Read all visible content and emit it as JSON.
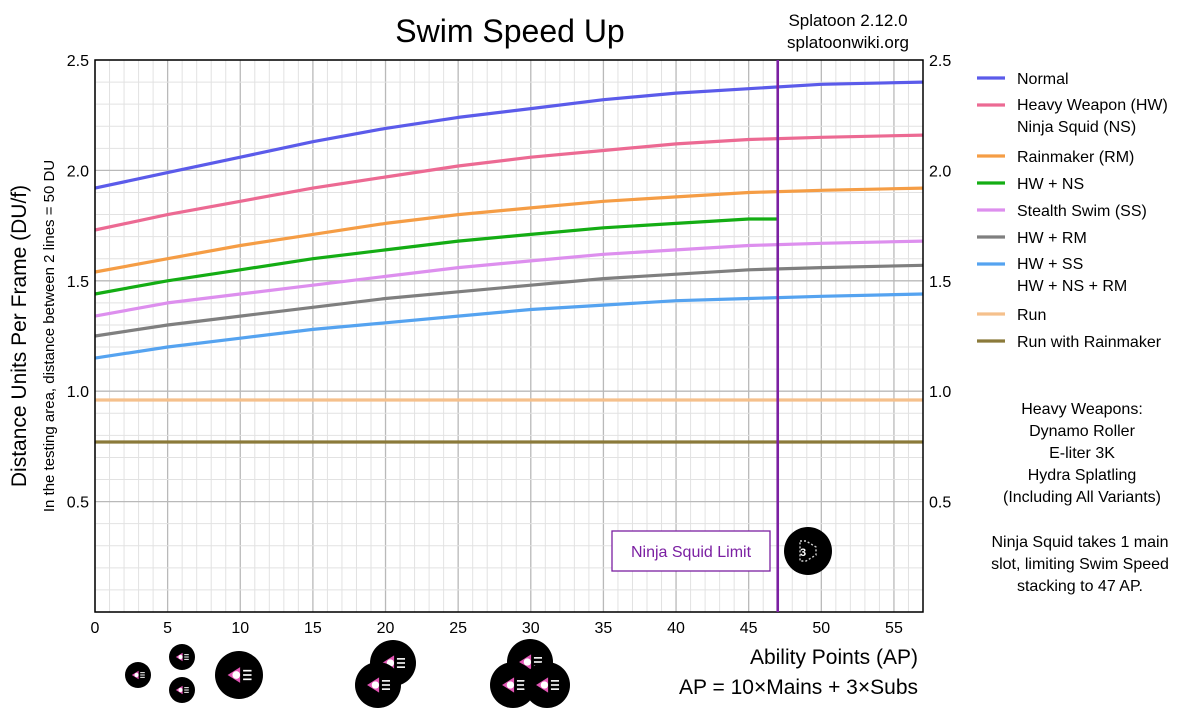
{
  "chart_data": {
    "type": "line",
    "title": "Swim Speed Up",
    "source_line1": "Splatoon 2.12.0",
    "source_line2": "splatoonwiki.org",
    "ylabel": "Distance Units Per Frame (DU/f)",
    "ylabel_sub": "In the testing area, distance between 2 lines = 50 DU",
    "xlabel": "Ability Points (AP)",
    "xlabel_sub": "AP = 10×Mains + 3×Subs",
    "xlim": [
      0,
      57
    ],
    "ylim": [
      0,
      2.5
    ],
    "x_ticks": [
      0,
      5,
      10,
      15,
      20,
      25,
      30,
      35,
      40,
      45,
      50,
      55
    ],
    "y_ticks": [
      0.5,
      1.0,
      1.5,
      2.0,
      2.5
    ],
    "y_tick_labels": [
      "0.5",
      "1.0",
      "1.5",
      "2.0",
      "2.5"
    ],
    "grid": true,
    "legend_position": "right",
    "series": [
      {
        "name": "Normal",
        "color": "#5b5bea",
        "x": [
          0,
          5,
          10,
          15,
          20,
          25,
          30,
          35,
          40,
          45,
          50,
          57
        ],
        "y": [
          1.92,
          1.99,
          2.06,
          2.13,
          2.19,
          2.24,
          2.28,
          2.32,
          2.35,
          2.37,
          2.39,
          2.4
        ]
      },
      {
        "name": "Heavy Weapon (HW)",
        "name2": "Ninja Squid (NS)",
        "color": "#ec6a93",
        "x": [
          0,
          5,
          10,
          15,
          20,
          25,
          30,
          35,
          40,
          45,
          50,
          57
        ],
        "y": [
          1.73,
          1.8,
          1.86,
          1.92,
          1.97,
          2.02,
          2.06,
          2.09,
          2.12,
          2.14,
          2.15,
          2.16
        ]
      },
      {
        "name": "Rainmaker (RM)",
        "color": "#f59d45",
        "x": [
          0,
          5,
          10,
          15,
          20,
          25,
          30,
          35,
          40,
          45,
          50,
          57
        ],
        "y": [
          1.54,
          1.6,
          1.66,
          1.71,
          1.76,
          1.8,
          1.83,
          1.86,
          1.88,
          1.9,
          1.91,
          1.92
        ]
      },
      {
        "name": "HW + NS",
        "color": "#14ad14",
        "x": [
          0,
          5,
          10,
          15,
          20,
          25,
          30,
          35,
          40,
          45,
          47
        ],
        "y": [
          1.44,
          1.5,
          1.55,
          1.6,
          1.64,
          1.68,
          1.71,
          1.74,
          1.76,
          1.78,
          1.78
        ]
      },
      {
        "name": "Stealth Swim (SS)",
        "color": "#dd8fee",
        "x": [
          0,
          5,
          10,
          15,
          20,
          25,
          30,
          35,
          40,
          45,
          50,
          57
        ],
        "y": [
          1.34,
          1.4,
          1.44,
          1.48,
          1.52,
          1.56,
          1.59,
          1.62,
          1.64,
          1.66,
          1.67,
          1.68
        ]
      },
      {
        "name": "HW + RM",
        "color": "#7f7f7f",
        "x": [
          0,
          5,
          10,
          15,
          20,
          25,
          30,
          35,
          40,
          45,
          50,
          57
        ],
        "y": [
          1.25,
          1.3,
          1.34,
          1.38,
          1.42,
          1.45,
          1.48,
          1.51,
          1.53,
          1.55,
          1.56,
          1.57
        ]
      },
      {
        "name": "HW + SS",
        "name2": "HW + NS + RM",
        "color": "#55a3f0",
        "x": [
          0,
          5,
          10,
          15,
          20,
          25,
          30,
          35,
          40,
          45,
          50,
          57
        ],
        "y": [
          1.15,
          1.2,
          1.24,
          1.28,
          1.31,
          1.34,
          1.37,
          1.39,
          1.41,
          1.42,
          1.43,
          1.44
        ]
      },
      {
        "name": "Run",
        "color": "#f5c08c",
        "x": [
          0,
          57
        ],
        "y": [
          0.96,
          0.96
        ]
      },
      {
        "name": "Run with Rainmaker",
        "color": "#8b7a3a",
        "x": [
          0,
          57
        ],
        "y": [
          0.77,
          0.77
        ]
      }
    ],
    "limit_line": {
      "x": 47,
      "color": "#7b1fa2",
      "label": "Ninja Squid Limit"
    },
    "notes": {
      "heavy": [
        "Heavy Weapons:",
        "Dynamo Roller",
        "E-liter 3K",
        "Hydra Splatling",
        "(Including All Variants)"
      ],
      "ninja": [
        "Ninja Squid takes 1 main",
        "slot, limiting Swim Speed",
        "stacking to 47 AP."
      ]
    },
    "ap_icons": [
      {
        "ap": 3,
        "type": "sub"
      },
      {
        "ap": 6,
        "type": "sub"
      },
      {
        "ap": 10,
        "type": "main"
      },
      {
        "ap": 20,
        "type": "main"
      },
      {
        "ap": 30,
        "type": "main"
      }
    ],
    "ns_icon_label": "Ninja Squid ability icon"
  }
}
